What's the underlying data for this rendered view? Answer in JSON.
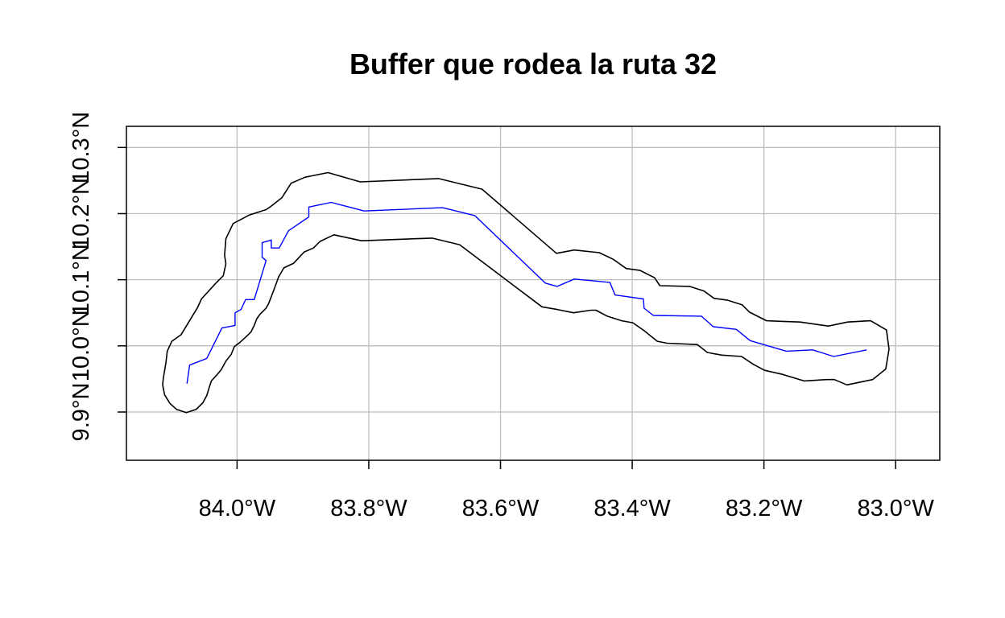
{
  "map": {
    "title": "Buffer que rodea la ruta 32",
    "x_axis": {
      "ticks": [
        -84.0,
        -83.8,
        -83.6,
        -83.4,
        -83.2,
        -83.0
      ],
      "tick_labels": [
        "84.0°W",
        "83.8°W",
        "83.6°W",
        "83.4°W",
        "83.2°W",
        "83.0°W"
      ]
    },
    "y_axis": {
      "ticks": [
        9.9,
        10.0,
        10.1,
        10.2,
        10.3
      ],
      "tick_labels": [
        "9.9°N",
        "10.0°N",
        "10.1°N",
        "10.2°N",
        "10.3°N"
      ]
    },
    "xlim": [
      -84.168,
      -82.933
    ],
    "ylim": [
      9.827,
      10.332
    ],
    "grid": true,
    "colors": {
      "grid": "#bebebe",
      "route": "#0000ff",
      "buffer": "#000000",
      "frame": "#000000"
    },
    "layers": [
      {
        "name": "ruta 32",
        "type": "line",
        "color": "#0000ff",
        "coords": [
          [
            -84.076,
            9.943
          ],
          [
            -84.072,
            9.971
          ],
          [
            -84.046,
            9.981
          ],
          [
            -84.023,
            10.027
          ],
          [
            -84.003,
            10.031
          ],
          [
            -84.003,
            10.05
          ],
          [
            -83.994,
            10.055
          ],
          [
            -83.987,
            10.07
          ],
          [
            -83.974,
            10.07
          ],
          [
            -83.956,
            10.129
          ],
          [
            -83.962,
            10.134
          ],
          [
            -83.962,
            10.156
          ],
          [
            -83.948,
            10.16
          ],
          [
            -83.948,
            10.148
          ],
          [
            -83.936,
            10.148
          ],
          [
            -83.922,
            10.174
          ],
          [
            -83.891,
            10.195
          ],
          [
            -83.891,
            10.21
          ],
          [
            -83.857,
            10.217
          ],
          [
            -83.807,
            10.204
          ],
          [
            -83.688,
            10.209
          ],
          [
            -83.639,
            10.197
          ],
          [
            -83.532,
            10.095
          ],
          [
            -83.514,
            10.09
          ],
          [
            -83.488,
            10.101
          ],
          [
            -83.434,
            10.096
          ],
          [
            -83.426,
            10.077
          ],
          [
            -83.383,
            10.071
          ],
          [
            -83.382,
            10.057
          ],
          [
            -83.368,
            10.046
          ],
          [
            -83.295,
            10.045
          ],
          [
            -83.277,
            10.029
          ],
          [
            -83.242,
            10.025
          ],
          [
            -83.221,
            10.008
          ],
          [
            -83.166,
            9.992
          ],
          [
            -83.126,
            9.994
          ],
          [
            -83.094,
            9.984
          ],
          [
            -83.044,
            9.994
          ]
        ]
      },
      {
        "name": "buffer",
        "type": "polygon",
        "color": "#000000",
        "coords": [
          [
            -84.085,
            10.017
          ],
          [
            -84.06,
            10.058
          ],
          [
            -84.054,
            10.071
          ],
          [
            -84.033,
            10.094
          ],
          [
            -84.021,
            10.106
          ],
          [
            -84.017,
            10.124
          ],
          [
            -84.019,
            10.137
          ],
          [
            -84.017,
            10.162
          ],
          [
            -84.006,
            10.185
          ],
          [
            -83.981,
            10.198
          ],
          [
            -83.956,
            10.206
          ],
          [
            -83.95,
            10.21
          ],
          [
            -83.932,
            10.224
          ],
          [
            -83.918,
            10.246
          ],
          [
            -83.897,
            10.255
          ],
          [
            -83.862,
            10.262
          ],
          [
            -83.813,
            10.248
          ],
          [
            -83.694,
            10.253
          ],
          [
            -83.628,
            10.237
          ],
          [
            -83.515,
            10.14
          ],
          [
            -83.488,
            10.145
          ],
          [
            -83.45,
            10.141
          ],
          [
            -83.429,
            10.131
          ],
          [
            -83.409,
            10.117
          ],
          [
            -83.388,
            10.114
          ],
          [
            -83.366,
            10.103
          ],
          [
            -83.358,
            10.091
          ],
          [
            -83.313,
            10.09
          ],
          [
            -83.291,
            10.083
          ],
          [
            -83.276,
            10.072
          ],
          [
            -83.255,
            10.069
          ],
          [
            -83.233,
            10.062
          ],
          [
            -83.222,
            10.051
          ],
          [
            -83.196,
            10.038
          ],
          [
            -83.171,
            10.037
          ],
          [
            -83.145,
            10.036
          ],
          [
            -83.102,
            10.03
          ],
          [
            -83.073,
            10.036
          ],
          [
            -83.038,
            10.038
          ],
          [
            -83.014,
            10.024
          ],
          [
            -83.01,
            9.995
          ],
          [
            -83.015,
            9.965
          ],
          [
            -83.035,
            9.949
          ],
          [
            -83.074,
            9.941
          ],
          [
            -83.093,
            9.949
          ],
          [
            -83.105,
            9.949
          ],
          [
            -83.139,
            9.947
          ],
          [
            -83.172,
            9.957
          ],
          [
            -83.199,
            9.963
          ],
          [
            -83.216,
            9.972
          ],
          [
            -83.234,
            9.984
          ],
          [
            -83.264,
            9.986
          ],
          [
            -83.286,
            9.99
          ],
          [
            -83.301,
            10.002
          ],
          [
            -83.347,
            10.004
          ],
          [
            -83.362,
            10.007
          ],
          [
            -83.382,
            10.023
          ],
          [
            -83.399,
            10.035
          ],
          [
            -83.416,
            10.038
          ],
          [
            -83.438,
            10.045
          ],
          [
            -83.455,
            10.054
          ],
          [
            -83.463,
            10.054
          ],
          [
            -83.489,
            10.05
          ],
          [
            -83.514,
            10.055
          ],
          [
            -83.537,
            10.059
          ],
          [
            -83.662,
            10.153
          ],
          [
            -83.704,
            10.163
          ],
          [
            -83.811,
            10.159
          ],
          [
            -83.853,
            10.168
          ],
          [
            -83.874,
            10.158
          ],
          [
            -83.884,
            10.148
          ],
          [
            -83.898,
            10.142
          ],
          [
            -83.914,
            10.125
          ],
          [
            -83.929,
            10.118
          ],
          [
            -83.937,
            10.104
          ],
          [
            -83.944,
            10.085
          ],
          [
            -83.952,
            10.064
          ],
          [
            -83.956,
            10.057
          ],
          [
            -83.965,
            10.048
          ],
          [
            -83.97,
            10.041
          ],
          [
            -83.974,
            10.031
          ],
          [
            -83.979,
            10.021
          ],
          [
            -83.986,
            10.014
          ],
          [
            -83.996,
            10.005
          ],
          [
            -84.004,
            9.999
          ],
          [
            -84.009,
            9.987
          ],
          [
            -84.017,
            9.977
          ],
          [
            -84.024,
            9.964
          ],
          [
            -84.03,
            9.957
          ],
          [
            -84.039,
            9.947
          ],
          [
            -84.042,
            9.938
          ],
          [
            -84.046,
            9.925
          ],
          [
            -84.052,
            9.914
          ],
          [
            -84.062,
            9.904
          ],
          [
            -84.077,
            9.899
          ],
          [
            -84.092,
            9.904
          ],
          [
            -84.102,
            9.913
          ],
          [
            -84.11,
            9.926
          ],
          [
            -84.113,
            9.941
          ],
          [
            -84.112,
            9.951
          ],
          [
            -84.108,
            9.975
          ],
          [
            -84.106,
            9.992
          ],
          [
            -84.099,
            10.007
          ]
        ]
      }
    ]
  }
}
